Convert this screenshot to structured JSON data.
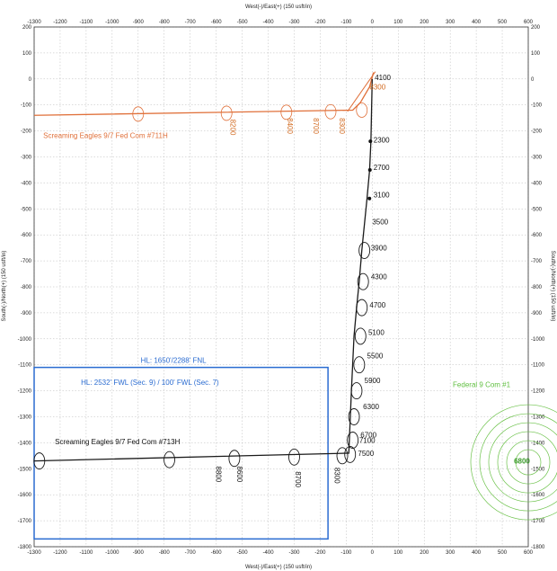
{
  "chart_data": {
    "type": "line",
    "xlabel_top": "West(-)/East(+) (150 usft/in)",
    "xlabel_bottom": "West(-)/East(+) (150 usft/in)",
    "ylabel_left": "South(-)/North(+) (150 usft/in)",
    "ylabel_right": "South(-)/North(+) (150 usft/in)",
    "xlim": [
      -1300,
      600
    ],
    "ylim": [
      -1800,
      200
    ],
    "xticks": [
      -1300,
      -1200,
      -1100,
      -1000,
      -900,
      -800,
      -700,
      -600,
      -500,
      -400,
      -300,
      -200,
      -100,
      0,
      100,
      200,
      300,
      400,
      500,
      600
    ],
    "yticks": [
      200,
      100,
      0,
      -100,
      -200,
      -300,
      -400,
      -500,
      -600,
      -700,
      -800,
      -900,
      -1000,
      -1100,
      -1200,
      -1300,
      -1400,
      -1500,
      -1600,
      -1700,
      -1800
    ],
    "grid": true,
    "series": [
      {
        "name": "Screaming Eagles 9/7 Fed Com #711H",
        "color": "#e0703a",
        "x": [
          5,
          -10,
          -45,
          -75,
          -1300
        ],
        "y": [
          25,
          -30,
          -90,
          -120,
          -140
        ],
        "ellipses": [
          {
            "x": -900,
            "y": -135
          },
          {
            "x": -560,
            "y": -132
          },
          {
            "x": -330,
            "y": -128
          },
          {
            "x": -160,
            "y": -126
          },
          {
            "x": -40,
            "y": -120
          }
        ],
        "md_labels": [
          "4100",
          "8300",
          "8200",
          "8400",
          "8700",
          "8300"
        ]
      },
      {
        "name": "Screaming Eagles 9/7 Fed Com #713H",
        "color": "#1a1a1a",
        "x": [
          0,
          -5,
          -10,
          -20,
          -30,
          -40,
          -50,
          -60,
          -70,
          -80,
          -90,
          -1300
        ],
        "y": [
          0,
          -240,
          -350,
          -460,
          -560,
          -660,
          -780,
          -880,
          -990,
          -1200,
          -1440,
          -1470
        ],
        "ellipses": [
          {
            "x": -85,
            "y": -1445
          },
          {
            "x": -115,
            "y": -1450
          },
          {
            "x": -300,
            "y": -1455
          },
          {
            "x": -530,
            "y": -1460
          },
          {
            "x": -780,
            "y": -1465
          },
          {
            "x": -1280,
            "y": -1470
          },
          {
            "x": -75,
            "y": -1390
          },
          {
            "x": -70,
            "y": -1300
          },
          {
            "x": -60,
            "y": -1200
          },
          {
            "x": -50,
            "y": -1100
          },
          {
            "x": -45,
            "y": -990
          },
          {
            "x": -40,
            "y": -880
          },
          {
            "x": -35,
            "y": -780
          },
          {
            "x": -30,
            "y": -660
          }
        ],
        "md_labels": [
          "4100",
          "2300",
          "2700",
          "3100",
          "3500",
          "3900",
          "4300",
          "4700",
          "5100",
          "5500",
          "5900",
          "6300",
          "6700",
          "7100",
          "7500",
          "8300",
          "8300",
          "8700",
          "8600",
          "8800"
        ]
      },
      {
        "name": "Federal 9 Com #1",
        "color": "#6cc24a",
        "center": {
          "x": 600,
          "y": -1475
        },
        "label_value": "6800"
      }
    ],
    "annotations": [
      "HL: 1650'/2288' FNL",
      "HL: 2532' FWL (Sec. 9) / 100' FWL (Sec. 7)"
    ],
    "hardline_box": {
      "x": [
        -1300,
        -170
      ],
      "y": [
        -1110,
        -1770
      ],
      "color": "#2b6cd1"
    }
  }
}
